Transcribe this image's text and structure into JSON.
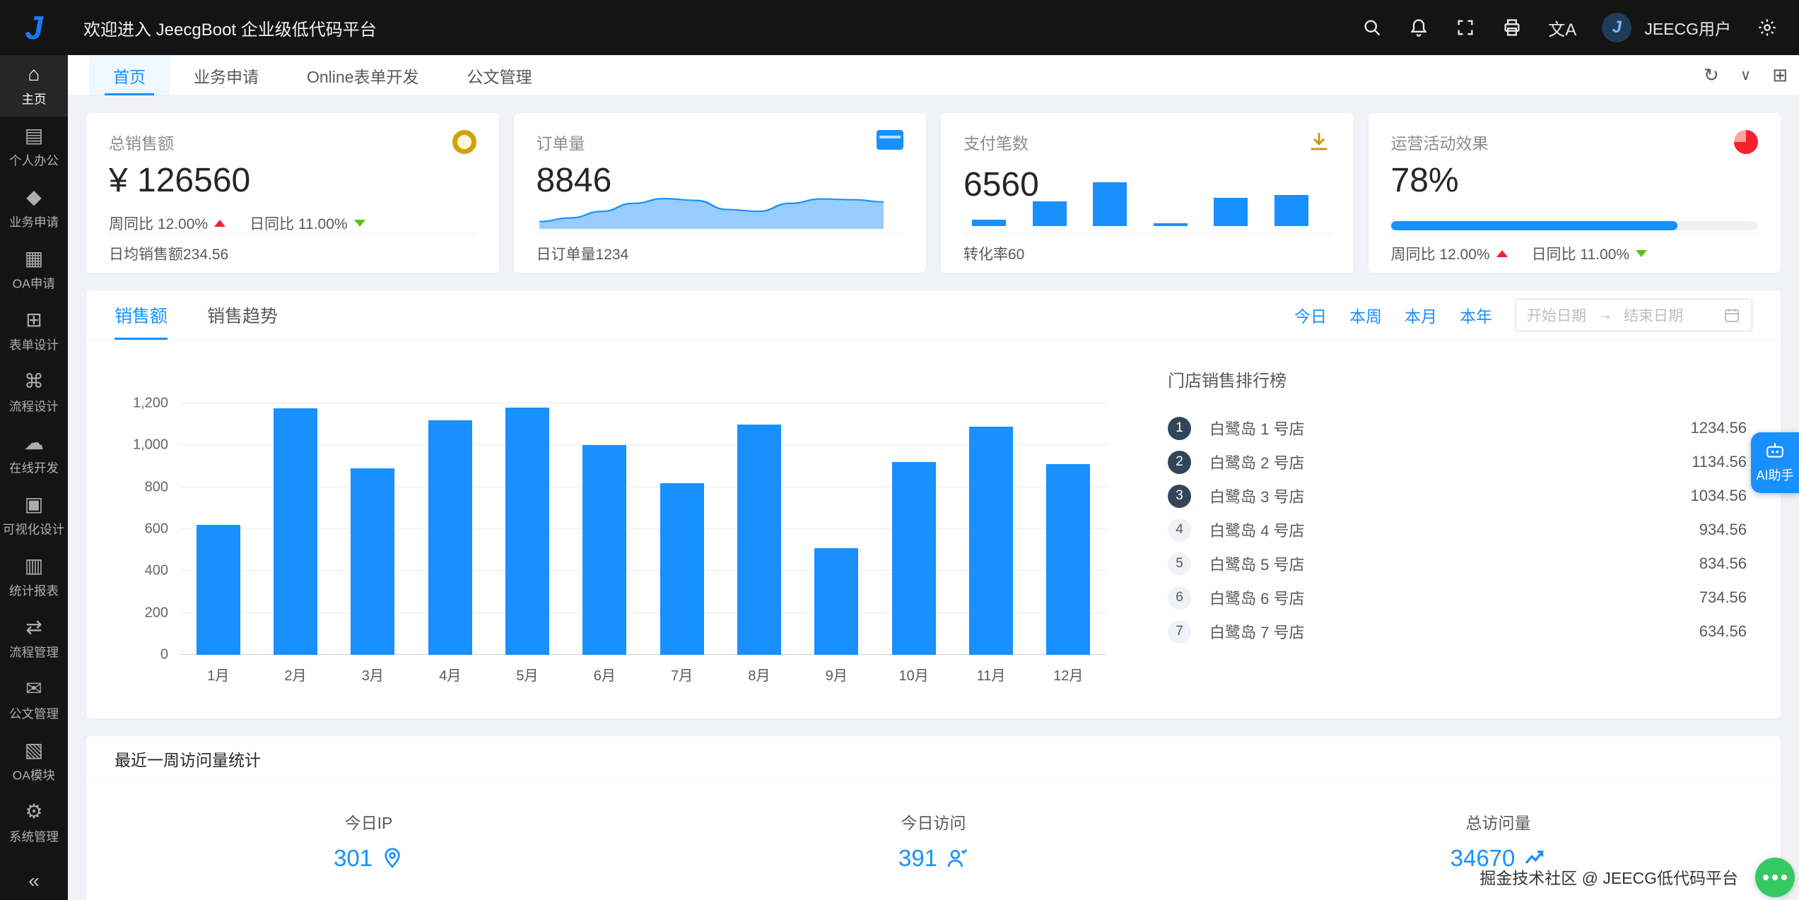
{
  "header": {
    "title": "欢迎进入 JeecgBoot 企业级低代码平台",
    "user": "JEECG用户",
    "logo_letter": "J"
  },
  "icons": {
    "translate": "文A",
    "refresh": "↻",
    "chevron_down": "∨",
    "layout_toggle": "⊞",
    "collapse": "«"
  },
  "sidebar": {
    "items": [
      {
        "glyph": "⌂",
        "label": "主页",
        "active": true
      },
      {
        "glyph": "▤",
        "label": "个人办公"
      },
      {
        "glyph": "◆",
        "label": "业务申请"
      },
      {
        "glyph": "▦",
        "label": "OA申请"
      },
      {
        "glyph": "⊞",
        "label": "表单设计"
      },
      {
        "glyph": "⌘",
        "label": "流程设计"
      },
      {
        "glyph": "☁",
        "label": "在线开发"
      },
      {
        "glyph": "▣",
        "label": "可视化设计"
      },
      {
        "glyph": "▥",
        "label": "统计报表"
      },
      {
        "glyph": "⇄",
        "label": "流程管理"
      },
      {
        "glyph": "✉",
        "label": "公文管理"
      },
      {
        "glyph": "▧",
        "label": "OA模块"
      },
      {
        "glyph": "⚙",
        "label": "系统管理"
      }
    ]
  },
  "tabs": [
    {
      "label": "首页",
      "active": true
    },
    {
      "label": "业务申请"
    },
    {
      "label": "Online表单开发"
    },
    {
      "label": "公文管理"
    }
  ],
  "stat_cards": [
    {
      "label": "总销售额",
      "value": "¥ 126560",
      "trend_week": "周同比 12.00%",
      "trend_day": "日同比 11.00%",
      "footer": "日均销售额234.56"
    },
    {
      "label": "订单量",
      "value": "8846",
      "footer": "日订单量1234"
    },
    {
      "label": "支付笔数",
      "value": "6560",
      "footer": "转化率60"
    },
    {
      "label": "运营活动效果",
      "value": "78%",
      "progress": 78,
      "trend_week": "周同比 12.00%",
      "trend_day": "日同比 11.00%"
    }
  ],
  "sales_panel": {
    "tabs": [
      {
        "label": "销售额",
        "active": true
      },
      {
        "label": "销售趋势"
      }
    ],
    "range_links": [
      {
        "label": "今日"
      },
      {
        "label": "本周"
      },
      {
        "label": "本月"
      },
      {
        "label": "本年"
      }
    ],
    "date_picker": {
      "start_placeholder": "开始日期",
      "separator": "→",
      "end_placeholder": "结束日期"
    },
    "ranking_title": "门店销售排行榜",
    "ranking": [
      {
        "rank": "1",
        "name": "白鹭岛 1 号店",
        "value": "1234.56",
        "top": true
      },
      {
        "rank": "2",
        "name": "白鹭岛 2 号店",
        "value": "1134.56",
        "top": true
      },
      {
        "rank": "3",
        "name": "白鹭岛 3 号店",
        "value": "1034.56",
        "top": true
      },
      {
        "rank": "4",
        "name": "白鹭岛 4 号店",
        "value": "934.56"
      },
      {
        "rank": "5",
        "name": "白鹭岛 5 号店",
        "value": "834.56"
      },
      {
        "rank": "6",
        "name": "白鹭岛 6 号店",
        "value": "734.56"
      },
      {
        "rank": "7",
        "name": "白鹭岛 7 号店",
        "value": "634.56"
      }
    ]
  },
  "chart_data": [
    {
      "id": "sales-bar",
      "type": "bar",
      "title": "",
      "categories": [
        "1月",
        "2月",
        "3月",
        "4月",
        "5月",
        "6月",
        "7月",
        "8月",
        "9月",
        "10月",
        "11月",
        "12月"
      ],
      "values": [
        620,
        1175,
        890,
        1120,
        1180,
        1000,
        820,
        1100,
        510,
        920,
        1090,
        910
      ],
      "ylim": [
        0,
        1200
      ],
      "ytick_step": 200,
      "bar_color": "#1890ff",
      "grid": true
    },
    {
      "id": "orders-sparkline",
      "type": "area",
      "values": [
        12,
        22,
        40,
        62,
        75,
        70,
        45,
        40,
        62,
        74,
        72,
        66
      ],
      "color": "#1890ff"
    },
    {
      "id": "payments-minibar",
      "type": "bar",
      "values": [
        2,
        8,
        14,
        1,
        9,
        10
      ],
      "color": "#1890ff"
    }
  ],
  "visits_panel": {
    "title": "最近一周访问量统计",
    "stats": [
      {
        "label": "今日IP",
        "value": "301",
        "icon": "location-icon"
      },
      {
        "label": "今日访问",
        "value": "391",
        "icon": "visitor-icon"
      },
      {
        "label": "总访问量",
        "value": "34670",
        "icon": "trend-icon"
      }
    ]
  },
  "ai_assistant": {
    "label": "AI助手"
  },
  "watermark": "掘金技术社区 @ JEECG低代码平台",
  "colors": {
    "primary": "#1890ff",
    "trend_up": "#f5222d",
    "trend_down": "#52c41a",
    "sidebar_bg": "#141414",
    "page_bg": "#f0f2f5",
    "rank_top_badge": "#314659"
  }
}
